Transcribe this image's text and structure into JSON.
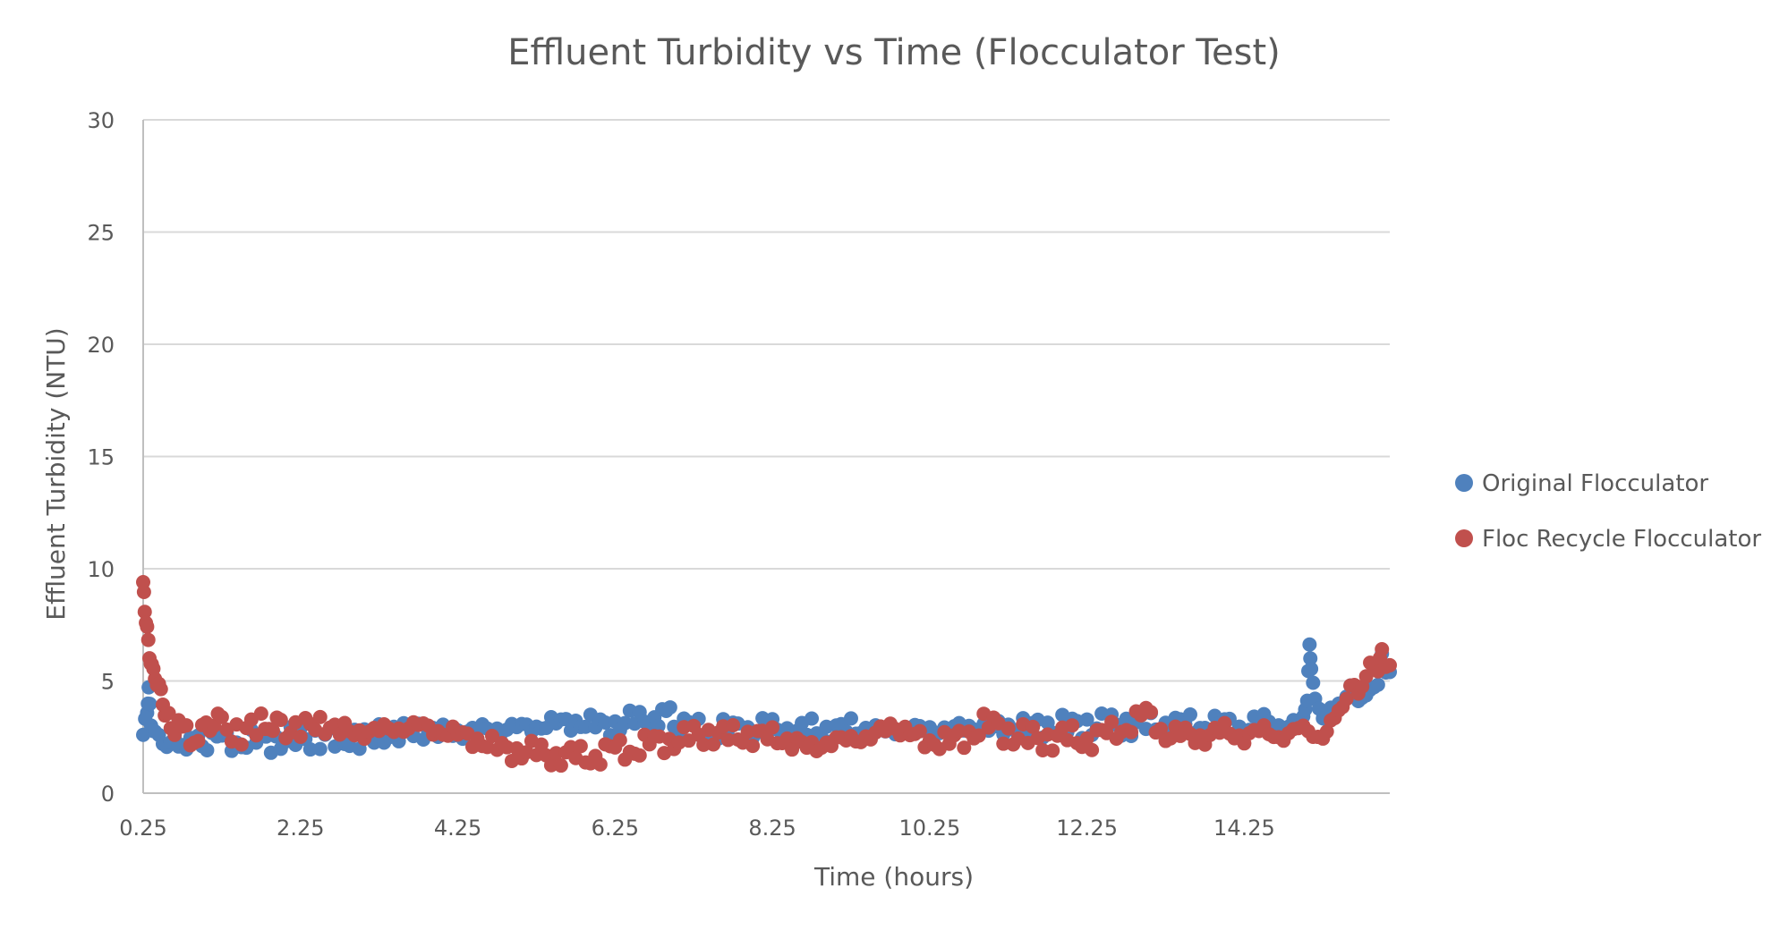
{
  "chart_data": {
    "type": "scatter",
    "title": "Effluent Turbidity vs Time (Flocculator Test)",
    "xlabel": "Time (hours)",
    "ylabel": "Effluent Turbidity (NTU)",
    "xlim": [
      0.25,
      16.1
    ],
    "ylim": [
      0,
      30
    ],
    "x_ticks": [
      "0.25",
      "2.25",
      "4.25",
      "6.25",
      "8.25",
      "10.25",
      "12.25",
      "14.25"
    ],
    "y_ticks": [
      "0",
      "5",
      "10",
      "15",
      "20",
      "25",
      "30"
    ],
    "grid": "horizontal",
    "legend_position": "right",
    "series": [
      {
        "name": "Original Flocculator",
        "color": "#4F81BD",
        "points": [
          [
            0.25,
            2.4
          ],
          [
            0.3,
            3.8
          ],
          [
            0.32,
            4.5
          ],
          [
            0.35,
            3.2
          ],
          [
            0.4,
            2.6
          ],
          [
            0.5,
            2.3
          ],
          [
            0.6,
            2.2
          ],
          [
            0.75,
            2.2
          ],
          [
            0.9,
            2.3
          ],
          [
            1.0,
            2.2
          ],
          [
            1.25,
            2.4
          ],
          [
            1.5,
            2.3
          ],
          [
            1.75,
            2.3
          ],
          [
            2.0,
            2.4
          ],
          [
            2.25,
            2.4
          ],
          [
            2.5,
            2.5
          ],
          [
            2.75,
            2.4
          ],
          [
            3.0,
            2.5
          ],
          [
            3.25,
            2.6
          ],
          [
            3.5,
            2.7
          ],
          [
            3.75,
            2.8
          ],
          [
            4.0,
            2.7
          ],
          [
            4.25,
            2.7
          ],
          [
            4.5,
            2.8
          ],
          [
            4.75,
            2.9
          ],
          [
            5.0,
            2.9
          ],
          [
            5.25,
            3.0
          ],
          [
            5.5,
            3.1
          ],
          [
            5.75,
            3.2
          ],
          [
            6.0,
            3.0
          ],
          [
            6.25,
            3.1
          ],
          [
            6.5,
            3.2
          ],
          [
            6.75,
            3.3
          ],
          [
            6.9,
            3.7
          ],
          [
            7.0,
            3.0
          ],
          [
            7.25,
            2.9
          ],
          [
            7.5,
            2.8
          ],
          [
            7.75,
            2.8
          ],
          [
            8.0,
            2.9
          ],
          [
            8.25,
            2.8
          ],
          [
            8.5,
            2.7
          ],
          [
            8.75,
            2.8
          ],
          [
            9.0,
            2.8
          ],
          [
            9.25,
            2.9
          ],
          [
            9.5,
            2.8
          ],
          [
            9.75,
            2.8
          ],
          [
            10.0,
            2.9
          ],
          [
            10.25,
            2.8
          ],
          [
            10.5,
            2.9
          ],
          [
            10.75,
            2.9
          ],
          [
            11.0,
            2.9
          ],
          [
            11.25,
            2.9
          ],
          [
            11.5,
            3.0
          ],
          [
            11.75,
            2.9
          ],
          [
            12.0,
            3.0
          ],
          [
            12.25,
            3.0
          ],
          [
            12.5,
            3.0
          ],
          [
            12.75,
            3.1
          ],
          [
            13.0,
            3.0
          ],
          [
            13.25,
            3.1
          ],
          [
            13.5,
            3.0
          ],
          [
            13.75,
            3.1
          ],
          [
            14.0,
            3.0
          ],
          [
            14.25,
            3.0
          ],
          [
            14.5,
            3.1
          ],
          [
            14.75,
            3.0
          ],
          [
            15.0,
            3.0
          ],
          [
            15.05,
            4.5
          ],
          [
            15.08,
            6.3
          ],
          [
            15.1,
            5.8
          ],
          [
            15.15,
            4.0
          ],
          [
            15.25,
            3.5
          ],
          [
            15.4,
            3.6
          ],
          [
            15.5,
            4.2
          ],
          [
            15.6,
            4.6
          ],
          [
            15.75,
            4.5
          ],
          [
            15.85,
            4.3
          ],
          [
            15.95,
            5.2
          ],
          [
            16.0,
            5.8
          ],
          [
            16.1,
            5.4
          ]
        ]
      },
      {
        "name": "Floc Recycle Flocculator",
        "color": "#C0504D",
        "points": [
          [
            0.25,
            9.2
          ],
          [
            0.27,
            8.3
          ],
          [
            0.3,
            7.2
          ],
          [
            0.33,
            6.2
          ],
          [
            0.36,
            5.6
          ],
          [
            0.4,
            5.2
          ],
          [
            0.45,
            4.8
          ],
          [
            0.5,
            4.0
          ],
          [
            0.55,
            3.5
          ],
          [
            0.6,
            3.0
          ],
          [
            0.75,
            2.8
          ],
          [
            0.9,
            2.5
          ],
          [
            1.0,
            2.7
          ],
          [
            1.1,
            3.2
          ],
          [
            1.25,
            2.9
          ],
          [
            1.5,
            2.7
          ],
          [
            1.75,
            3.0
          ],
          [
            1.9,
            3.3
          ],
          [
            2.0,
            2.8
          ],
          [
            2.25,
            2.9
          ],
          [
            2.5,
            3.1
          ],
          [
            2.75,
            2.8
          ],
          [
            3.0,
            2.7
          ],
          [
            3.25,
            2.8
          ],
          [
            3.5,
            2.9
          ],
          [
            3.75,
            3.0
          ],
          [
            4.0,
            2.8
          ],
          [
            4.25,
            2.6
          ],
          [
            4.5,
            2.4
          ],
          [
            4.75,
            2.0
          ],
          [
            5.0,
            1.9
          ],
          [
            5.25,
            1.8
          ],
          [
            5.5,
            1.7
          ],
          [
            5.75,
            1.6
          ],
          [
            6.0,
            1.7
          ],
          [
            6.25,
            1.9
          ],
          [
            6.5,
            2.0
          ],
          [
            6.75,
            2.2
          ],
          [
            7.0,
            2.4
          ],
          [
            7.25,
            2.5
          ],
          [
            7.5,
            2.7
          ],
          [
            7.75,
            2.5
          ],
          [
            8.0,
            2.6
          ],
          [
            8.25,
            2.5
          ],
          [
            8.5,
            2.3
          ],
          [
            8.75,
            2.0
          ],
          [
            9.0,
            2.3
          ],
          [
            9.25,
            2.4
          ],
          [
            9.5,
            2.5
          ],
          [
            9.75,
            3.0
          ],
          [
            10.0,
            2.7
          ],
          [
            10.25,
            2.2
          ],
          [
            10.5,
            2.4
          ],
          [
            10.75,
            2.5
          ],
          [
            11.0,
            3.2
          ],
          [
            11.25,
            2.6
          ],
          [
            11.5,
            2.5
          ],
          [
            11.75,
            2.4
          ],
          [
            12.0,
            2.5
          ],
          [
            12.25,
            2.4
          ],
          [
            12.5,
            2.6
          ],
          [
            12.75,
            3.0
          ],
          [
            13.0,
            3.5
          ],
          [
            13.25,
            2.7
          ],
          [
            13.5,
            2.5
          ],
          [
            13.75,
            2.6
          ],
          [
            14.0,
            2.7
          ],
          [
            14.25,
            2.6
          ],
          [
            14.5,
            2.7
          ],
          [
            14.75,
            2.6
          ],
          [
            15.0,
            2.8
          ],
          [
            15.25,
            2.6
          ],
          [
            15.4,
            3.2
          ],
          [
            15.5,
            4.0
          ],
          [
            15.6,
            4.6
          ],
          [
            15.75,
            5.0
          ],
          [
            15.85,
            5.5
          ],
          [
            15.95,
            5.8
          ],
          [
            16.0,
            6.0
          ],
          [
            16.1,
            5.7
          ]
        ]
      }
    ]
  }
}
